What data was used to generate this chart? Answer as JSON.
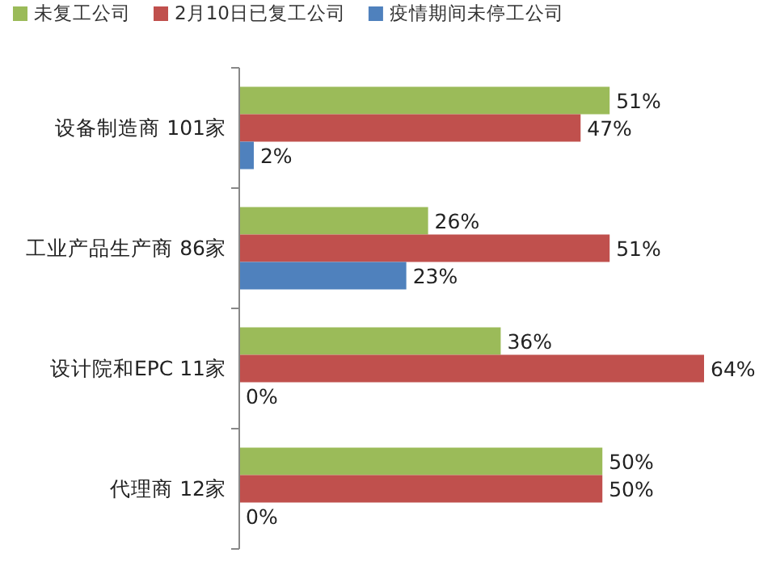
{
  "chart_data": {
    "type": "bar",
    "orientation": "horizontal",
    "categories": [
      "设备制造商 101家",
      "工业产品生产商 86家",
      "设计院和EPC 11家",
      "代理商 12家"
    ],
    "series": [
      {
        "name": "未复工公司",
        "color": "#9bbb59",
        "values": [
          51,
          26,
          36,
          50
        ],
        "value_labels": [
          "51%",
          "26%",
          "36%",
          "50%"
        ]
      },
      {
        "name": "2月10日已复工公司",
        "color": "#c0504d",
        "values": [
          47,
          51,
          64,
          50
        ],
        "value_labels": [
          "47%",
          "51%",
          "64%",
          "50%"
        ]
      },
      {
        "name": "疫情期间未停工公司",
        "color": "#4f81bd",
        "values": [
          2,
          23,
          0,
          0
        ],
        "value_labels": [
          "2%",
          "23%",
          "0%",
          "0%"
        ]
      }
    ],
    "legend": "top",
    "tick_labels": "y"
  }
}
